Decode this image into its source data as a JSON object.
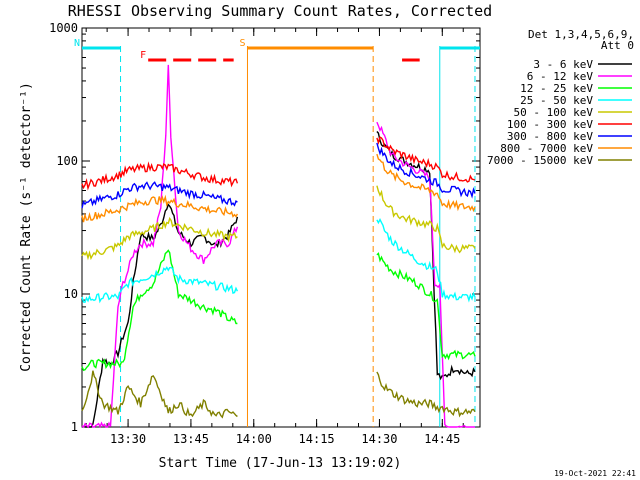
{
  "chart_data": {
    "type": "line",
    "title": "RHESSI Observing Summary Count Rates, Corrected",
    "xlabel": "Start Time (17-Jun-13 13:19:02)",
    "ylabel": "Corrected Count Rate (s⁻¹ detector⁻¹)",
    "yscale": "log",
    "ylim": [
      1,
      1000
    ],
    "xlim_minutes": [
      13.3167,
      14.9
    ],
    "x_ticks": [
      "13:30",
      "13:45",
      "14:00",
      "14:15",
      "14:30",
      "14:45"
    ],
    "x_tick_minutes": [
      13.5,
      13.75,
      14.0,
      14.25,
      14.5,
      14.75
    ],
    "y_ticks": [
      "1",
      "10",
      "100",
      "1000"
    ],
    "y_tick_values": [
      1,
      10,
      100,
      1000
    ],
    "legend": {
      "placement": "right",
      "header": [
        "Det 1,3,4,5,6,9,",
        "Att 0"
      ]
    },
    "timestamp": "19-Oct-2021 22:41",
    "flags": [
      {
        "label": "N",
        "color": "#00e5ee",
        "start": 13.3167,
        "end": 13.47
      },
      {
        "label": "F",
        "color": "#ff0000",
        "start": 13.58,
        "end": 13.92,
        "dashed": true
      },
      {
        "label": "S",
        "color": "#ff8c00",
        "start": 13.975,
        "end": 14.475
      },
      {
        "label": "",
        "color": "#ff0000",
        "start": 14.59,
        "end": 14.66
      },
      {
        "label": "",
        "color": "#00e5ee",
        "start": 14.74,
        "end": 14.9
      }
    ],
    "markers": [
      {
        "x": 13.47,
        "color": "#00e5ee",
        "style": "dashed"
      },
      {
        "x": 13.975,
        "color": "#ff8c00",
        "style": "solid"
      },
      {
        "x": 14.475,
        "color": "#ff8c00",
        "style": "dashed"
      },
      {
        "x": 14.74,
        "color": "#00e5ee",
        "style": "solid"
      },
      {
        "x": 14.88,
        "color": "#00e5ee",
        "style": "dashed"
      }
    ],
    "series": [
      {
        "name": "3 - 6 keV",
        "color": "#000000",
        "segments": [
          {
            "x": [
              13.3167,
              13.36,
              13.4,
              13.43,
              13.46,
              13.48,
              13.5,
              13.52,
              13.55,
              13.6,
              13.63,
              13.66,
              13.7,
              13.75,
              13.8,
              13.85,
              13.9,
              13.935
            ],
            "y": [
              1.0,
              1.0,
              3.2,
              3.0,
              3.6,
              4.8,
              6,
              12,
              28,
              26,
              33,
              50,
              29,
              24,
              27,
              23,
              28,
              38
            ]
          },
          {
            "x": [
              14.49,
              14.52,
              14.55,
              14.6,
              14.65,
              14.7,
              14.73,
              14.75,
              14.8,
              14.85,
              14.88
            ],
            "y": [
              160,
              130,
              112,
              100,
              92,
              85,
              2.5,
              2.3,
              2.8,
              2.5,
              2.6
            ]
          }
        ]
      },
      {
        "name": "6 - 12 keV",
        "color": "#ff00ff",
        "segments": [
          {
            "x": [
              13.3167,
              13.36,
              13.4,
              13.43,
              13.46,
              13.48,
              13.5,
              13.52,
              13.55,
              13.6,
              13.63,
              13.65,
              13.66,
              13.67,
              13.7,
              13.75,
              13.8,
              13.85,
              13.9,
              13.935
            ],
            "y": [
              1.0,
              1.0,
              1.0,
              1.0,
              8,
              12,
              15,
              20,
              24,
              24,
              45,
              160,
              500,
              160,
              30,
              22,
              18,
              24,
              24,
              32
            ]
          },
          {
            "x": [
              14.49,
              14.52,
              14.55,
              14.6,
              14.65,
              14.7,
              14.72,
              14.74,
              14.76,
              14.8,
              14.85,
              14.88
            ],
            "y": [
              200,
              150,
              110,
              95,
              85,
              75,
              12,
              12,
              1.0,
              1.0,
              1.0,
              1.0
            ]
          }
        ]
      },
      {
        "name": "12 - 25 keV",
        "color": "#00ff00",
        "segments": [
          {
            "x": [
              13.3167,
              13.36,
              13.4,
              13.46,
              13.48,
              13.52,
              13.55,
              13.6,
              13.66,
              13.7,
              13.75,
              13.8,
              13.85,
              13.9,
              13.935
            ],
            "y": [
              2.8,
              3.0,
              3.0,
              3.0,
              3.0,
              8,
              10,
              12,
              22,
              10,
              9,
              8,
              7.5,
              6.5,
              6
            ]
          },
          {
            "x": [
              14.49,
              14.52,
              14.55,
              14.6,
              14.65,
              14.7,
              14.73,
              14.75,
              14.8,
              14.85,
              14.88
            ],
            "y": [
              20,
              17,
              15,
              13.5,
              12,
              10,
              9,
              3.5,
              3.5,
              3.5,
              3.4
            ]
          }
        ]
      },
      {
        "name": "25 - 50 keV",
        "color": "#00ffff",
        "segments": [
          {
            "x": [
              13.3167,
              13.4,
              13.46,
              13.5,
              13.55,
              13.6,
              13.66,
              13.7,
              13.75,
              13.8,
              13.85,
              13.9,
              13.935
            ],
            "y": [
              9,
              9.5,
              9.5,
              12,
              13,
              14,
              16,
              13,
              12.5,
              12,
              11.5,
              11,
              10.5
            ]
          },
          {
            "x": [
              14.49,
              14.52,
              14.55,
              14.6,
              14.65,
              14.7,
              14.73,
              14.75,
              14.8,
              14.85,
              14.88
            ],
            "y": [
              38,
              30,
              25,
              21,
              18,
              16,
              15,
              10,
              9.5,
              9.5,
              9.5
            ]
          }
        ]
      },
      {
        "name": "50 - 100 keV",
        "color": "#c8c800",
        "segments": [
          {
            "x": [
              13.3167,
              13.4,
              13.46,
              13.5,
              13.55,
              13.6,
              13.66,
              13.7,
              13.75,
              13.8,
              13.85,
              13.9,
              13.935
            ],
            "y": [
              19,
              21,
              23,
              27,
              29,
              31,
              35,
              33,
              31,
              29,
              28,
              27,
              27
            ]
          },
          {
            "x": [
              14.49,
              14.52,
              14.55,
              14.6,
              14.65,
              14.7,
              14.73,
              14.75,
              14.8,
              14.85,
              14.88
            ],
            "y": [
              65,
              50,
              42,
              37,
              35,
              33,
              31,
              23,
              22,
              22,
              22
            ]
          }
        ]
      },
      {
        "name": "100 - 300 keV",
        "color": "#ff0000",
        "segments": [
          {
            "x": [
              13.3167,
              13.4,
              13.46,
              13.5,
              13.55,
              13.6,
              13.66,
              13.7,
              13.75,
              13.8,
              13.85,
              13.9,
              13.935
            ],
            "y": [
              65,
              72,
              78,
              85,
              88,
              90,
              90,
              85,
              80,
              75,
              72,
              70,
              68
            ]
          },
          {
            "x": [
              14.49,
              14.52,
              14.55,
              14.6,
              14.65,
              14.7,
              14.73,
              14.75,
              14.8,
              14.85,
              14.88
            ],
            "y": [
              150,
              135,
              120,
              110,
              100,
              95,
              90,
              80,
              76,
              74,
              72
            ]
          }
        ]
      },
      {
        "name": "300 - 800 keV",
        "color": "#0000ff",
        "segments": [
          {
            "x": [
              13.3167,
              13.4,
              13.46,
              13.5,
              13.55,
              13.6,
              13.66,
              13.7,
              13.75,
              13.8,
              13.85,
              13.9,
              13.935
            ],
            "y": [
              46,
              52,
              56,
              62,
              65,
              65,
              63,
              60,
              57,
              55,
              52,
              50,
              49
            ]
          },
          {
            "x": [
              14.49,
              14.52,
              14.55,
              14.6,
              14.65,
              14.7,
              14.73,
              14.75,
              14.8,
              14.85,
              14.88
            ],
            "y": [
              130,
              110,
              95,
              85,
              78,
              72,
              68,
              62,
              60,
              58,
              57
            ]
          }
        ]
      },
      {
        "name": "800 - 7000 keV",
        "color": "#ff8c00",
        "segments": [
          {
            "x": [
              13.3167,
              13.4,
              13.46,
              13.5,
              13.55,
              13.6,
              13.66,
              13.7,
              13.75,
              13.8,
              13.85,
              13.9,
              13.935
            ],
            "y": [
              37,
              40,
              43,
              46,
              49,
              51,
              50,
              48,
              46,
              44,
              42,
              41,
              40
            ]
          },
          {
            "x": [
              14.49,
              14.52,
              14.55,
              14.6,
              14.65,
              14.7,
              14.73,
              14.75,
              14.8,
              14.85,
              14.88
            ],
            "y": [
              110,
              90,
              78,
              70,
              64,
              60,
              57,
              48,
              46,
              45,
              45
            ]
          }
        ]
      },
      {
        "name": "7000 - 15000 keV",
        "color": "#808000",
        "segments": [
          {
            "x": [
              13.3167,
              13.36,
              13.4,
              13.46,
              13.5,
              13.55,
              13.6,
              13.66,
              13.7,
              13.75,
              13.8,
              13.85,
              13.9,
              13.935
            ],
            "y": [
              1.3,
              2.5,
              1.5,
              1.3,
              2.0,
              1.5,
              2.5,
              1.3,
              1.5,
              1.2,
              1.5,
              1.2,
              1.3,
              1.2
            ]
          },
          {
            "x": [
              14.49,
              14.52,
              14.55,
              14.6,
              14.65,
              14.7,
              14.73,
              14.75,
              14.8,
              14.85,
              14.88
            ],
            "y": [
              2.5,
              2.0,
              1.8,
              1.6,
              1.5,
              1.5,
              1.4,
              1.4,
              1.3,
              1.3,
              1.3
            ]
          }
        ]
      }
    ]
  }
}
